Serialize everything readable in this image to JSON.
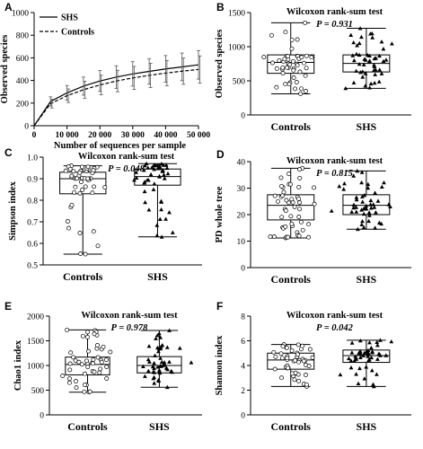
{
  "chart_data": [
    {
      "panel": "A",
      "type": "line",
      "xlabel": "Number of sequences per sample",
      "ylabel": "Observed species",
      "xlim": [
        0,
        50000
      ],
      "ylim": [
        0,
        1000
      ],
      "xticks": [
        0,
        10000,
        20000,
        30000,
        40000,
        50000
      ],
      "xtick_labels": [
        "0",
        "10 000",
        "20 000",
        "30 000",
        "40 000",
        "50 000"
      ],
      "yticks": [
        0,
        200,
        400,
        600,
        800,
        1000
      ],
      "legend": "top-left",
      "series": [
        {
          "name": "SHS",
          "style": "solid",
          "x": [
            0,
            5000,
            10000,
            15000,
            20000,
            25000,
            30000,
            35000,
            40000,
            45000,
            50000
          ],
          "y": [
            0,
            215,
            290,
            350,
            395,
            430,
            458,
            480,
            502,
            520,
            538
          ],
          "err": [
            0,
            40,
            65,
            80,
            92,
            100,
            108,
            113,
            118,
            122,
            126
          ]
        },
        {
          "name": "Controls",
          "style": "dashed",
          "x": [
            0,
            5000,
            10000,
            15000,
            20000,
            25000,
            30000,
            35000,
            40000,
            45000,
            50000
          ],
          "y": [
            0,
            195,
            265,
            318,
            360,
            395,
            422,
            445,
            465,
            482,
            497
          ],
          "err": [
            0,
            38,
            60,
            75,
            86,
            95,
            102,
            107,
            112,
            116,
            120
          ]
        }
      ]
    },
    {
      "panel": "B",
      "type": "box",
      "test": "Wilcoxon rank-sum test",
      "p_label": "P = 0.931",
      "ylabel": "Observed species",
      "ylim": [
        0,
        1500
      ],
      "yticks": [
        0,
        500,
        1000,
        1500
      ],
      "categories": [
        "Controls",
        "SHS"
      ],
      "boxes": [
        {
          "min": 310,
          "q1": 610,
          "median": 770,
          "q3": 880,
          "max": 1350
        },
        {
          "min": 390,
          "q1": 630,
          "median": 755,
          "q3": 880,
          "max": 1270
        }
      ]
    },
    {
      "panel": "C",
      "type": "box",
      "test": "Wilcoxon rank-sum test",
      "p_label": "P = 0.048",
      "ylabel": "Simpson index",
      "ylim": [
        0.5,
        1.0
      ],
      "yticks": [
        0.5,
        0.6,
        0.7,
        0.8,
        0.9,
        1.0
      ],
      "ytick_labels": [
        "0.5",
        "0.6",
        "0.7",
        "0.8",
        "0.9",
        "1.0"
      ],
      "categories": [
        "Controls",
        "SHS"
      ],
      "boxes": [
        {
          "min": 0.55,
          "q1": 0.83,
          "median": 0.9,
          "q3": 0.93,
          "max": 0.96
        },
        {
          "min": 0.63,
          "q1": 0.87,
          "median": 0.91,
          "q3": 0.945,
          "max": 0.97
        }
      ]
    },
    {
      "panel": "D",
      "type": "box",
      "test": "Wilcoxon rank-sum test",
      "p_label": "P = 0.815",
      "ylabel": "PD whole tree",
      "ylim": [
        0,
        40
      ],
      "yticks": [
        0,
        10,
        20,
        30,
        40
      ],
      "categories": [
        "Controls",
        "SHS"
      ],
      "boxes": [
        {
          "min": 11.2,
          "q1": 18,
          "median": 23.5,
          "q3": 27.5,
          "max": 37.5
        },
        {
          "min": 14.5,
          "q1": 20,
          "median": 23.5,
          "q3": 27.5,
          "max": 36.5
        }
      ]
    },
    {
      "panel": "E",
      "type": "box",
      "test": "Wilcoxon rank-sum test",
      "p_label": "P = 0.978",
      "ylabel": "Chao1 index",
      "ylim": [
        0,
        2000
      ],
      "yticks": [
        0,
        500,
        1000,
        1500,
        2000
      ],
      "categories": [
        "Controls",
        "SHS"
      ],
      "boxes": [
        {
          "min": 460,
          "q1": 810,
          "median": 1020,
          "q3": 1170,
          "max": 1720
        },
        {
          "min": 560,
          "q1": 850,
          "median": 1000,
          "q3": 1180,
          "max": 1710
        }
      ]
    },
    {
      "panel": "F",
      "type": "box",
      "test": "Wilcoxon rank-sum test",
      "p_label": "P = 0.042",
      "ylabel": "Shannon index",
      "ylim": [
        0,
        8
      ],
      "yticks": [
        0,
        2,
        4,
        6,
        8
      ],
      "categories": [
        "Controls",
        "SHS"
      ],
      "boxes": [
        {
          "min": 2.3,
          "q1": 3.7,
          "median": 4.45,
          "q3": 5.0,
          "max": 5.7
        },
        {
          "min": 2.3,
          "q1": 4.25,
          "median": 4.8,
          "q3": 5.25,
          "max": 6.05
        }
      ]
    }
  ]
}
